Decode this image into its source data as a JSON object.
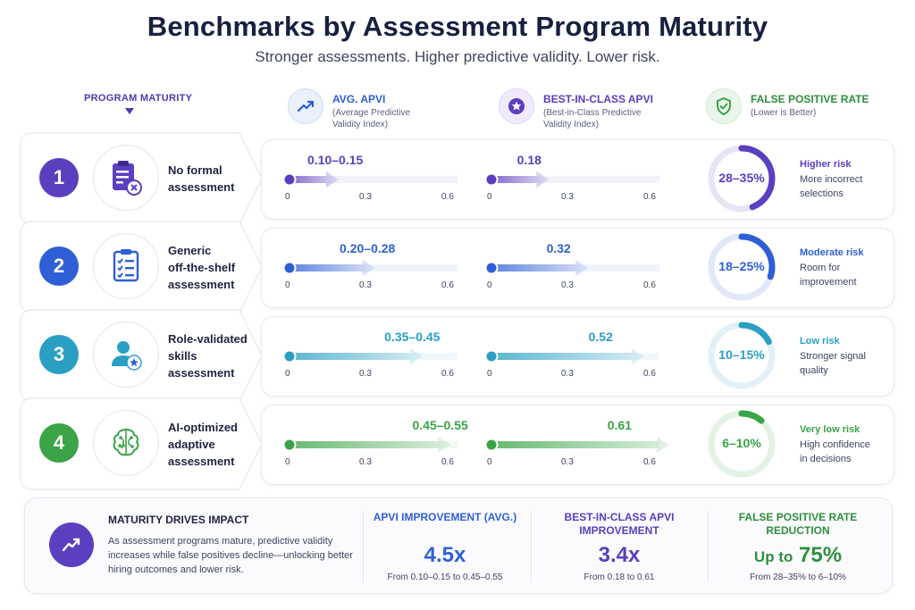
{
  "title": "Benchmarks by Assessment Program Maturity",
  "subtitle": "Stronger assessments. Higher predictive validity. Lower risk.",
  "program_maturity_label": "PROGRAM MATURITY",
  "columns": {
    "avg": {
      "title": "AVG. APVI",
      "sub1": "(Average Predictive",
      "sub2": "Validity Index)",
      "icon": "trending-up-icon"
    },
    "best": {
      "title": "BEST-IN-CLASS APVI",
      "sub1": "(Best-in-Class Predictive",
      "sub2": "Validity Index)",
      "icon": "star-badge-icon"
    },
    "fpr": {
      "title": "FALSE POSITIVE RATE",
      "sub1": "(Lower is Better)",
      "icon": "shield-check-icon"
    }
  },
  "axis_ticks": [
    "0",
    "0.3",
    "0.6"
  ],
  "rows": [
    {
      "num": "1",
      "line1": "No formal",
      "line2": "assessment",
      "line3": "",
      "icon": "clipboard-x-icon",
      "color": "#5a3fbf",
      "avg_label": "0.10–0.15",
      "best_label": "0.18",
      "fpr_label": "28–35%",
      "risk_title": "Higher risk",
      "risk_desc1": "More incorrect",
      "risk_desc2": "selections"
    },
    {
      "num": "2",
      "line1": "Generic",
      "line2": "off-the-shelf",
      "line3": "assessment",
      "icon": "checklist-icon",
      "color": "#2f5fd6",
      "avg_label": "0.20–0.28",
      "best_label": "0.32",
      "fpr_label": "18–25%",
      "risk_title": "Moderate risk",
      "risk_desc1": "Room for",
      "risk_desc2": "improvement"
    },
    {
      "num": "3",
      "line1": "Role-validated",
      "line2": "skills",
      "line3": "assessment",
      "icon": "user-star-icon",
      "color": "#2a9fc4",
      "avg_label": "0.35–0.45",
      "best_label": "0.52",
      "fpr_label": "10–15%",
      "risk_title": "Low risk",
      "risk_desc1": "Stronger signal",
      "risk_desc2": "quality"
    },
    {
      "num": "4",
      "line1": "AI-optimized",
      "line2": "adaptive",
      "line3": "assessment",
      "icon": "brain-circuit-icon",
      "color": "#3aa447",
      "avg_label": "0.45–0.55",
      "best_label": "0.61",
      "fpr_label": "6–10%",
      "risk_title": "Very low risk",
      "risk_desc1": "High confidence",
      "risk_desc2": "in decisions"
    }
  ],
  "summary": {
    "icon": "chart-growth-icon",
    "title": "MATURITY DRIVES IMPACT",
    "text": "As assessment programs mature, predictive validity increases while false positives decline—unlocking better hiring outcomes and lower risk.",
    "m1_title": "APVI IMPROVEMENT (AVG.)",
    "m1_value": "4.5x",
    "m1_from": "From 0.10–0.15 to 0.45–0.55",
    "m2_title": "BEST-IN-CLASS APVI IMPROVEMENT",
    "m2_value": "3.4x",
    "m2_from": "From 0.18 to 0.61",
    "m3_title": "FALSE POSITIVE RATE REDUCTION",
    "m3_pre": "Up to",
    "m3_value": "75%",
    "m3_from": "From 28–35% to 6–10%"
  },
  "chart_data": {
    "type": "bar",
    "categories": [
      "No formal assessment",
      "Generic off-the-shelf assessment",
      "Role-validated skills assessment",
      "AI-optimized adaptive assessment"
    ],
    "xlim": [
      0,
      0.6
    ],
    "series": [
      {
        "name": "AVG. APVI",
        "ranges": [
          [
            0.1,
            0.15
          ],
          [
            0.2,
            0.28
          ],
          [
            0.35,
            0.45
          ],
          [
            0.45,
            0.55
          ]
        ]
      },
      {
        "name": "BEST-IN-CLASS APVI",
        "values": [
          0.18,
          0.32,
          0.52,
          0.61
        ]
      },
      {
        "name": "FALSE POSITIVE RATE",
        "ranges_percent": [
          [
            28,
            35
          ],
          [
            18,
            25
          ],
          [
            10,
            15
          ],
          [
            6,
            10
          ]
        ]
      }
    ],
    "colors": [
      "#5a3fbf",
      "#2f5fd6",
      "#2a9fc4",
      "#3aa447"
    ]
  }
}
